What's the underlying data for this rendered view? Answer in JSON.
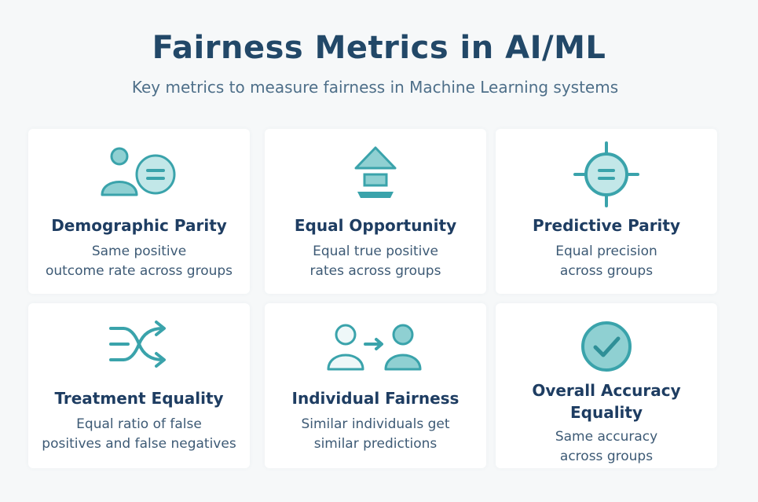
{
  "header": {
    "title": "Fairness Metrics in AI/ML",
    "subtitle": "Key metrics to measure fairness in Machine Learning systems"
  },
  "colors": {
    "accent": "#3aa3ab",
    "accent_fill": "#8fd0d2",
    "title": "#224868"
  },
  "cards": [
    {
      "icon": "person-equals-icon",
      "title": "Demographic Parity",
      "desc1": "Same positive",
      "desc2": "outcome rate across groups"
    },
    {
      "icon": "up-arrow-icon",
      "title": "Equal Opportunity",
      "desc1": "Equal true positive",
      "desc2": "rates across groups"
    },
    {
      "icon": "crosshair-equals-icon",
      "title": "Predictive Parity",
      "desc1": "Equal precision",
      "desc2": "across groups"
    },
    {
      "icon": "shuffle-arrows-icon",
      "title": "Treatment Equality",
      "desc1": "Equal ratio of false",
      "desc2": "positives and false negatives"
    },
    {
      "icon": "person-to-person-icon",
      "title": "Individual Fairness",
      "desc1": "Similar individuals get",
      "desc2": "similar predictions"
    },
    {
      "icon": "check-circle-icon",
      "title1": "Overall Accuracy",
      "title2": "Equality",
      "desc1": "Same accuracy",
      "desc2": "across groups"
    }
  ]
}
